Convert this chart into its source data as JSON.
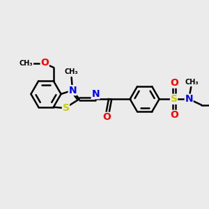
{
  "bg_color": "#ebebeb",
  "bond_color": "#000000",
  "bond_width": 1.8,
  "atom_colors": {
    "C": "#000000",
    "N": "#0000ff",
    "O": "#ff0000",
    "S_thz": "#cccc00",
    "S_sul": "#cccc00"
  },
  "font_size": 10,
  "figsize": [
    3.0,
    3.0
  ],
  "dpi": 100,
  "xlim": [
    0,
    10
  ],
  "ylim": [
    0,
    10
  ]
}
